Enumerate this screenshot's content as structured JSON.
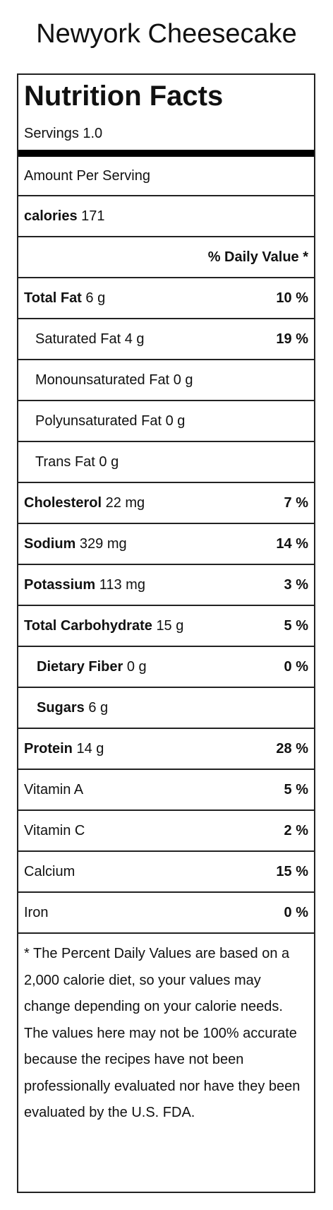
{
  "page": {
    "title": "Newyork Cheesecake"
  },
  "label": {
    "heading": "Nutrition Facts",
    "servings": "Servings 1.0",
    "amount_per_serving": "Amount Per Serving",
    "calories_label": "calories",
    "calories_value": "171",
    "daily_value_header": "% Daily Value *",
    "nutrients": [
      {
        "name": "Total Fat",
        "amount": "6 g",
        "dv": "10 %"
      },
      {
        "name": "Saturated Fat",
        "amount": "4 g",
        "dv": "19 %"
      },
      {
        "name": "Monounsaturated Fat",
        "amount": "0 g",
        "dv": ""
      },
      {
        "name": "Polyunsaturated Fat",
        "amount": "0 g",
        "dv": ""
      },
      {
        "name": "Trans Fat",
        "amount": "0 g",
        "dv": ""
      },
      {
        "name": "Cholesterol",
        "amount": "22 mg",
        "dv": "7 %"
      },
      {
        "name": "Sodium",
        "amount": "329 mg",
        "dv": "14 %"
      },
      {
        "name": "Potassium",
        "amount": "113 mg",
        "dv": "3 %"
      },
      {
        "name": "Total Carbohydrate",
        "amount": "15 g",
        "dv": "5 %"
      },
      {
        "name": "Dietary Fiber",
        "amount": "0 g",
        "dv": "0 %"
      },
      {
        "name": "Sugars",
        "amount": "6 g",
        "dv": ""
      },
      {
        "name": "Protein",
        "amount": "14 g",
        "dv": "28 %"
      }
    ],
    "vitamins": [
      {
        "name": "Vitamin A",
        "dv": "5 %"
      },
      {
        "name": "Vitamin C",
        "dv": "2 %"
      },
      {
        "name": "Calcium",
        "dv": "15 %"
      },
      {
        "name": "Iron",
        "dv": "0 %"
      }
    ],
    "footnote": "* The Percent Daily Values are based on a 2,000 calorie diet, so your values may change depending on your calorie needs. The values here may not be 100% accurate because the recipes have not been professionally evaluated nor have they been evaluated by the U.S. FDA."
  },
  "colors": {
    "border": "#222222",
    "thick_rule": "#000000",
    "text": "#111111",
    "background": "#ffffff"
  }
}
